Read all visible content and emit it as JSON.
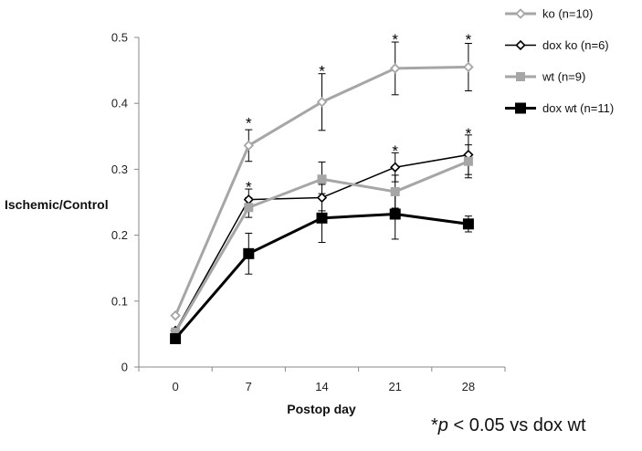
{
  "chart_data": {
    "type": "line",
    "title": "",
    "xlabel": "Postop day",
    "ylabel": "Ischemic/Control",
    "x": [
      0,
      7,
      14,
      21,
      28
    ],
    "x_tick_labels": [
      "0",
      "7",
      "14",
      "21",
      "28"
    ],
    "ylim": [
      0,
      0.5
    ],
    "y_ticks": [
      0,
      0.1,
      0.2,
      0.3,
      0.4,
      0.5
    ],
    "y_tick_labels": [
      "0",
      "0.1",
      "0.2",
      "0.3",
      "0.4",
      "0.5"
    ],
    "grid": false,
    "legend_position": "top-right",
    "series": [
      {
        "name": "ko (n=10)",
        "values": [
          0.078,
          0.336,
          0.402,
          0.453,
          0.455
        ],
        "errors": [
          0,
          0.024,
          0.043,
          0.04,
          0.036
        ],
        "color": "#a6a6a6",
        "marker": "diamond-open",
        "line_width": 3,
        "marker_size": 9
      },
      {
        "name": "dox ko (n=6)",
        "values": [
          0.055,
          0.254,
          0.257,
          0.303,
          0.322
        ],
        "errors": [
          0,
          0.016,
          0.02,
          0.022,
          0.03
        ],
        "color": "#000000",
        "marker": "diamond-open",
        "line_width": 1.5,
        "marker_size": 9
      },
      {
        "name": "wt (n=9)",
        "values": [
          0.053,
          0.242,
          0.285,
          0.266,
          0.312
        ],
        "errors": [
          0,
          0.015,
          0.026,
          0.025,
          0.025
        ],
        "color": "#a6a6a6",
        "marker": "square",
        "line_width": 3,
        "marker_size": 10
      },
      {
        "name": "dox wt (n=11)",
        "values": [
          0.043,
          0.172,
          0.226,
          0.232,
          0.217
        ],
        "errors": [
          0,
          0.031,
          0.037,
          0.038,
          0.012
        ],
        "color": "#000000",
        "marker": "square",
        "line_width": 3,
        "marker_size": 12
      }
    ],
    "annotations": [
      {
        "text": "*",
        "x": 7,
        "y": 0.376
      },
      {
        "text": "*",
        "x": 7,
        "y": 0.279
      },
      {
        "text": "*",
        "x": 14,
        "y": 0.455
      },
      {
        "text": "*",
        "x": 21,
        "y": 0.503
      },
      {
        "text": "*",
        "x": 21,
        "y": 0.334
      },
      {
        "text": "*",
        "x": 28,
        "y": 0.503
      },
      {
        "text": "*",
        "x": 28,
        "y": 0.36
      }
    ]
  },
  "footnote": {
    "star": "*",
    "p_symbol": "p",
    "rest": " < 0.05 vs dox wt"
  }
}
